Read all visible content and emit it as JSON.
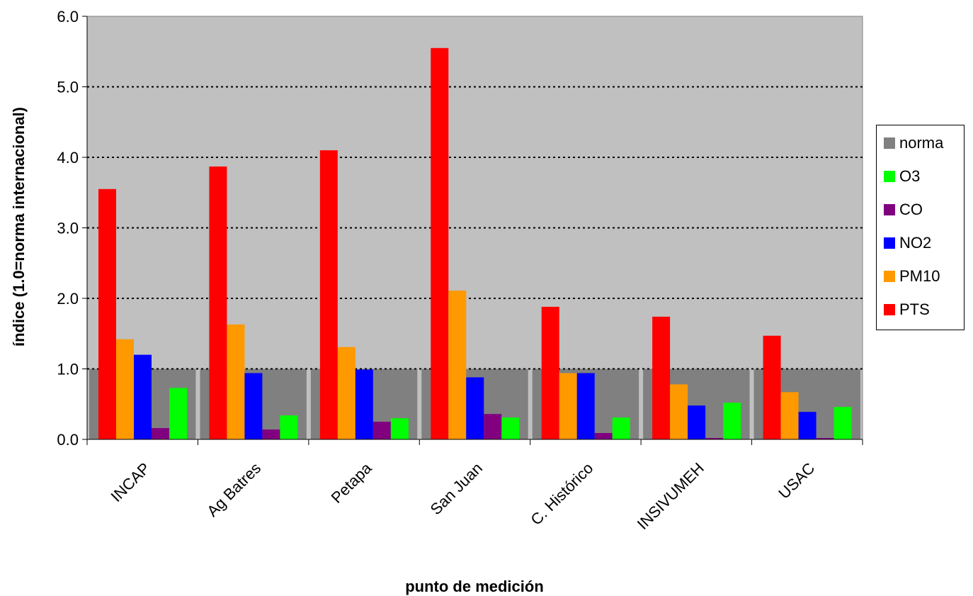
{
  "chart_data": {
    "type": "bar",
    "title": "",
    "xlabel": "punto de medición",
    "ylabel": "índice (1.0=norma internacional)",
    "ylim": [
      0,
      6
    ],
    "yticks": [
      "0.0",
      "1.0",
      "2.0",
      "3.0",
      "4.0",
      "5.0",
      "6.0"
    ],
    "grid": "dotted horizontal",
    "legend_position": "right",
    "categories": [
      "INCAP",
      "Ag Batres",
      "Petapa",
      "San Juan",
      "C. Histórico",
      "INSIVUMEH",
      "USAC"
    ],
    "norma": {
      "name": "norma",
      "value": 1.0,
      "color": "#808080"
    },
    "series": [
      {
        "name": "PTS",
        "color": "#ff0000",
        "values": [
          3.55,
          3.87,
          4.1,
          5.55,
          1.88,
          1.74,
          1.47
        ]
      },
      {
        "name": "PM10",
        "color": "#ff9900",
        "values": [
          1.42,
          1.63,
          1.31,
          2.11,
          0.94,
          0.78,
          0.67
        ]
      },
      {
        "name": "NO2",
        "color": "#0000ff",
        "values": [
          1.2,
          0.94,
          0.99,
          0.88,
          0.94,
          0.48,
          0.39
        ]
      },
      {
        "name": "CO",
        "color": "#800080",
        "values": [
          0.16,
          0.14,
          0.25,
          0.36,
          0.09,
          0.02,
          0.02
        ]
      },
      {
        "name": "O3",
        "color": "#00ff00",
        "values": [
          0.73,
          0.34,
          0.3,
          0.31,
          0.31,
          0.52,
          0.46
        ]
      }
    ],
    "legend": [
      "norma",
      "O3",
      "CO",
      "NO2",
      "PM10",
      "PTS"
    ],
    "colors": {
      "plot_background": "#c0c0c0",
      "norma": "#808080"
    }
  }
}
